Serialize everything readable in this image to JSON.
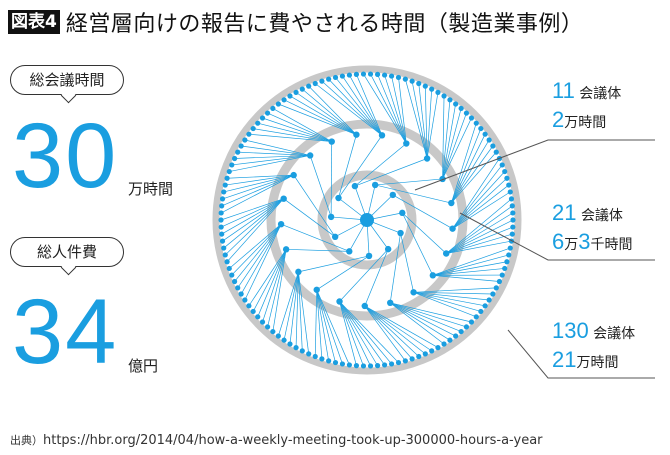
{
  "title": {
    "badge": "図表4",
    "text": "経営層向けの報告に費やされる時間（製造業事例）"
  },
  "left": {
    "meeting_hours": {
      "label": "総会議時間",
      "value": "30",
      "unit": "万時間"
    },
    "personnel_cost": {
      "label": "総人件費",
      "value": "34",
      "unit": "億円"
    }
  },
  "rings": [
    {
      "count_num": "11",
      "count_unit": "会議体",
      "hours_parts": [
        {
          "n": "2",
          "u": "万時間"
        }
      ],
      "dots": 11
    },
    {
      "count_num": "21",
      "count_unit": "会議体",
      "hours_parts": [
        {
          "n": "6",
          "u": "万"
        },
        {
          "n": "3",
          "u": "千時間"
        }
      ],
      "dots": 21
    },
    {
      "count_num": "130",
      "count_unit": "会議体",
      "hours_parts": [
        {
          "n": "21",
          "u": "万時間"
        }
      ],
      "dots": 130
    }
  ],
  "colors": {
    "accent": "#1a9ee0",
    "ring": "#c8c8c8"
  },
  "source": {
    "prefix": "出典）",
    "url": "https://hbr.org/2014/04/how-a-weekly-meeting-took-up-300000-hours-a-year"
  }
}
